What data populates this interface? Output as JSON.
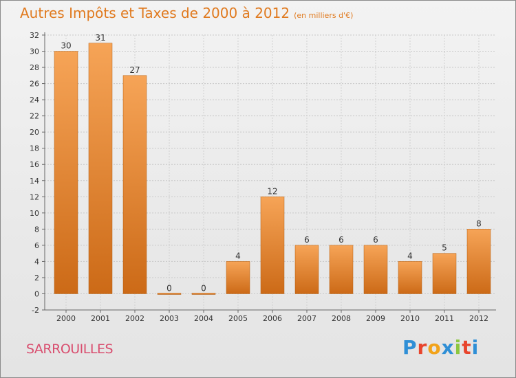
{
  "title": "Autres Impôts et Taxes de 2000 à 2012",
  "subtitle": "(en milliers d'€)",
  "commune": "SARROUILLES",
  "brand": {
    "text": "Proxiti",
    "letters": [
      "P",
      "r",
      "o",
      "x",
      "i",
      "t",
      "i"
    ],
    "colors": [
      "#2f8fd6",
      "#e8442c",
      "#f2a31a",
      "#2f8fd6",
      "#8cc63f",
      "#e8442c",
      "#2f8fd6"
    ]
  },
  "colors": {
    "bar_top": "#f6a457",
    "bar_bottom": "#cc6a17",
    "title": "#e07a1f",
    "commune": "#d94e6f"
  },
  "chart_data": {
    "type": "bar",
    "title": "Autres Impôts et Taxes de 2000 à 2012",
    "subtitle": "(en milliers d'€)",
    "categories": [
      "2000",
      "2001",
      "2002",
      "2003",
      "2004",
      "2005",
      "2006",
      "2007",
      "2008",
      "2009",
      "2010",
      "2011",
      "2012"
    ],
    "values": [
      30,
      31,
      27,
      0,
      0,
      4,
      12,
      6,
      6,
      6,
      4,
      5,
      8
    ],
    "ylim": [
      -2,
      32
    ],
    "yticks": [
      -2,
      0,
      2,
      4,
      6,
      8,
      10,
      12,
      14,
      16,
      18,
      20,
      22,
      24,
      26,
      28,
      30,
      32
    ],
    "grid": true
  }
}
